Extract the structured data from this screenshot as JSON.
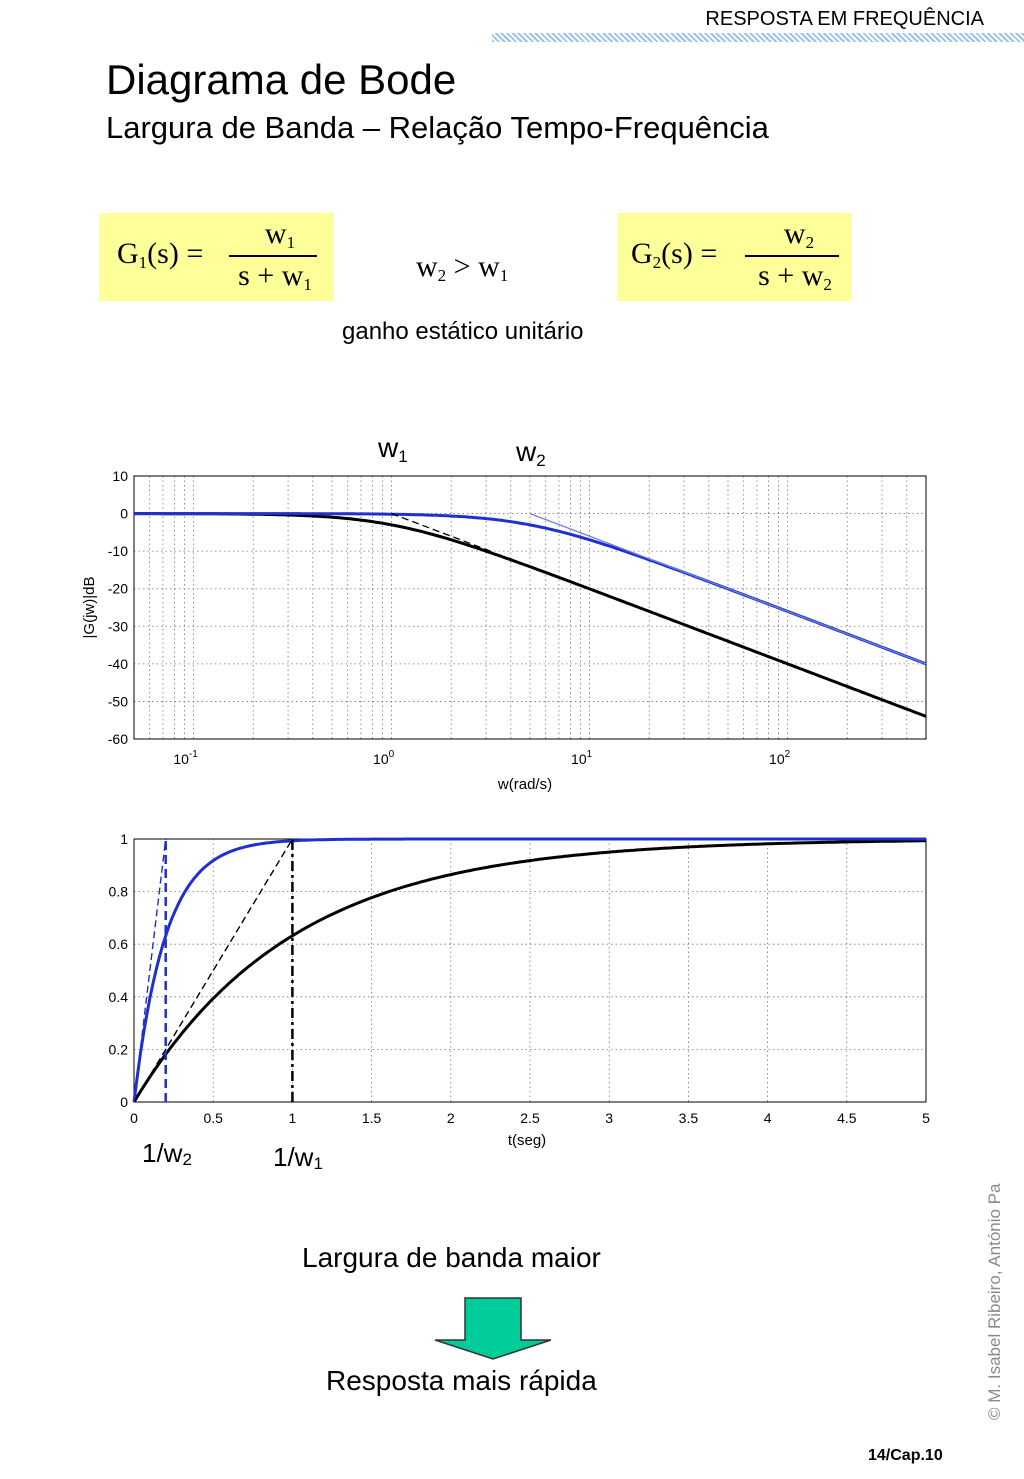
{
  "header": {
    "section": "RESPOSTA EM FREQUÊNCIA"
  },
  "title": "Diagrama de Bode",
  "subtitle": "Largura de Banda – Relação Tempo-Frequência",
  "formulas": {
    "g1": {
      "lhs_main": "G",
      "lhs_sub": "1",
      "lhs_arg": "(s) =",
      "num_main": "w",
      "num_sub": "1",
      "den_main": "s + w",
      "den_sub": "1"
    },
    "relation": {
      "left": "w",
      "left_sub": "2",
      "op": " > w",
      "right_sub": "1"
    },
    "g2": {
      "lhs_main": "G",
      "lhs_sub": "2",
      "lhs_arg": "(s) =",
      "num_main": "w",
      "num_sub": "2",
      "den_main": "s + w",
      "den_sub": "2"
    }
  },
  "static_gain_note": "ganho estático unitário",
  "bode_labels": {
    "w1_main": "w",
    "w1_sub": "1",
    "w2_main": "w",
    "w2_sub": "2"
  },
  "step_labels": {
    "t2_main": "1/w",
    "t2_sub": "2",
    "t1_main": "1/w",
    "t1_sub": "1"
  },
  "bottom": {
    "text1": "Largura de banda maior",
    "text2": "Resposta mais rápida"
  },
  "arrow_color": "#00cc99",
  "copyright": "© M. Isabel Ribeiro, António Pa",
  "page_number": "14/Cap.10",
  "chart_data": [
    {
      "type": "line",
      "scale_x": "log",
      "xlabel": "w(rad/s)",
      "ylabel": "|G(jw)|dB",
      "xlim": [
        0.05,
        500
      ],
      "ylim": [
        -60,
        10
      ],
      "yticks": [
        10,
        0,
        -10,
        -20,
        -30,
        -40,
        -50,
        -60
      ],
      "xticks": [
        0.1,
        1,
        10,
        100
      ],
      "xtick_labels": [
        {
          "base": "10",
          "exp": "-1"
        },
        {
          "base": "10",
          "exp": "0"
        },
        {
          "base": "10",
          "exp": "1"
        },
        {
          "base": "10",
          "exp": "2"
        }
      ],
      "grid": true,
      "series": [
        {
          "color": "#000000",
          "pole": 1,
          "kind": "magnitude",
          "x": [
            0.05,
            0.1,
            0.2,
            0.5,
            1,
            2,
            5,
            10,
            20,
            50,
            100,
            200,
            500
          ],
          "values": [
            0,
            -0.04,
            -0.17,
            -0.97,
            -3.01,
            -6.99,
            -14.15,
            -20.04,
            -26.03,
            -33.98,
            -40.0,
            -46.02,
            -53.98
          ]
        },
        {
          "color": "#1f2fd0",
          "pole": 5,
          "kind": "magnitude",
          "x": [
            0.05,
            0.1,
            0.2,
            0.5,
            1,
            2,
            5,
            10,
            20,
            50,
            100,
            200,
            500
          ],
          "values": [
            0,
            0,
            -0.01,
            -0.04,
            -0.17,
            -0.64,
            -3.01,
            -6.99,
            -12.3,
            -20.04,
            -26.03,
            -32.06,
            -40.0
          ]
        },
        {
          "color": "#000000",
          "style": "dashed",
          "kind": "asymptote",
          "x": [
            1,
            3.3
          ],
          "values": [
            0,
            -10.4
          ]
        },
        {
          "color": "#6f7fe0",
          "kind": "asymptote",
          "x": [
            5,
            500
          ],
          "values": [
            0,
            -40
          ]
        }
      ]
    },
    {
      "type": "line",
      "xlabel": "t(seg)",
      "ylabel": "",
      "xlim": [
        0,
        5
      ],
      "ylim": [
        0,
        1
      ],
      "xticks": [
        0,
        0.5,
        1,
        1.5,
        2,
        2.5,
        3,
        3.5,
        4,
        4.5,
        5
      ],
      "xtick_labels": [
        "0",
        "0.5",
        "1",
        "1.5",
        "2",
        "2.5",
        "3",
        "3.5",
        "4",
        "4.5",
        "5"
      ],
      "yticks": [
        0,
        0.2,
        0.4,
        0.6,
        0.8,
        1
      ],
      "ytick_labels": [
        "0",
        "0.2",
        "0.4",
        "0.6",
        "0.8",
        "1"
      ],
      "grid": true,
      "series": [
        {
          "color": "#000000",
          "kind": "step",
          "pole": 1,
          "x": [
            0,
            0.25,
            0.5,
            0.75,
            1,
            1.5,
            2,
            2.5,
            3,
            3.5,
            4,
            4.5,
            5
          ],
          "values": [
            0,
            0.221,
            0.393,
            0.528,
            0.632,
            0.777,
            0.865,
            0.918,
            0.95,
            0.97,
            0.982,
            0.989,
            0.993
          ]
        },
        {
          "color": "#1f2fd0",
          "kind": "step",
          "pole": 5,
          "x": [
            0,
            0.1,
            0.2,
            0.3,
            0.4,
            0.6,
            0.8,
            1,
            1.5,
            2,
            3,
            4,
            5
          ],
          "values": [
            0,
            0.393,
            0.632,
            0.777,
            0.865,
            0.95,
            0.982,
            0.993,
            0.999,
            1,
            1,
            1,
            1
          ]
        },
        {
          "color": "#000000",
          "kind": "tangent",
          "style": "dashed",
          "x": [
            0,
            1
          ],
          "values": [
            0,
            1
          ]
        },
        {
          "color": "#000000",
          "kind": "marker",
          "style": "dashdot",
          "x": [
            1,
            1
          ],
          "values": [
            0,
            1
          ]
        },
        {
          "color": "#1f2fd0",
          "kind": "tangent",
          "style": "dashed",
          "x": [
            0,
            0.2
          ],
          "values": [
            0,
            1
          ]
        },
        {
          "color": "#1f2fd0",
          "kind": "marker",
          "style": "dashed",
          "x": [
            0.2,
            0.2
          ],
          "values": [
            0,
            1
          ]
        }
      ]
    }
  ]
}
